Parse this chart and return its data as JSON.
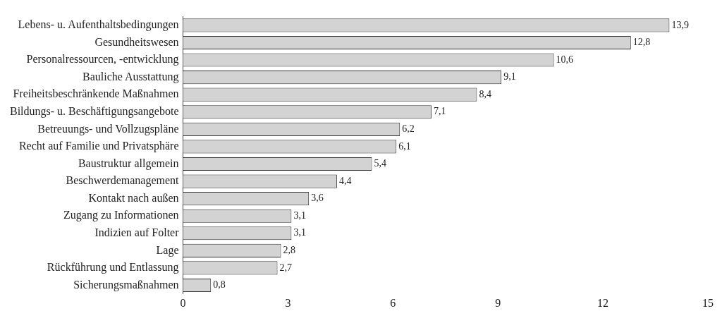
{
  "chart_data": {
    "type": "bar",
    "orientation": "horizontal",
    "categories": [
      "Lebens- u. Aufenthaltsbedingungen",
      "Gesundheitswesen",
      "Personalressourcen, -entwicklung",
      "Bauliche Ausstattung",
      "Freiheitsbeschränkende Maßnahmen",
      "Bildungs- u. Beschäftigungsangebote",
      "Betreuungs- und Vollzugspläne",
      "Recht auf Familie und Privatsphäre",
      "Baustruktur allgemein",
      "Beschwerdemanagement",
      "Kontakt nach außen",
      "Zugang zu Informationen",
      "Indizien auf Folter",
      "Lage",
      "Rückführung und Entlassung",
      "Sicherungsmaßnahmen"
    ],
    "values": [
      13.9,
      12.8,
      10.6,
      9.1,
      8.4,
      7.1,
      6.2,
      6.1,
      5.4,
      4.4,
      3.6,
      3.1,
      3.1,
      2.8,
      2.7,
      0.8
    ],
    "value_labels": [
      "13,9",
      "12,8",
      "10,6",
      "9,1",
      "8,4",
      "7,1",
      "6,2",
      "6,1",
      "5,4",
      "4,4",
      "3,6",
      "3,1",
      "3,1",
      "2,8",
      "2,7",
      "0,8"
    ],
    "color": "#d3d3d3",
    "xlim": [
      0,
      15
    ],
    "xticks": [
      0,
      3,
      6,
      9,
      12,
      15
    ],
    "grid": false,
    "legend": false
  }
}
